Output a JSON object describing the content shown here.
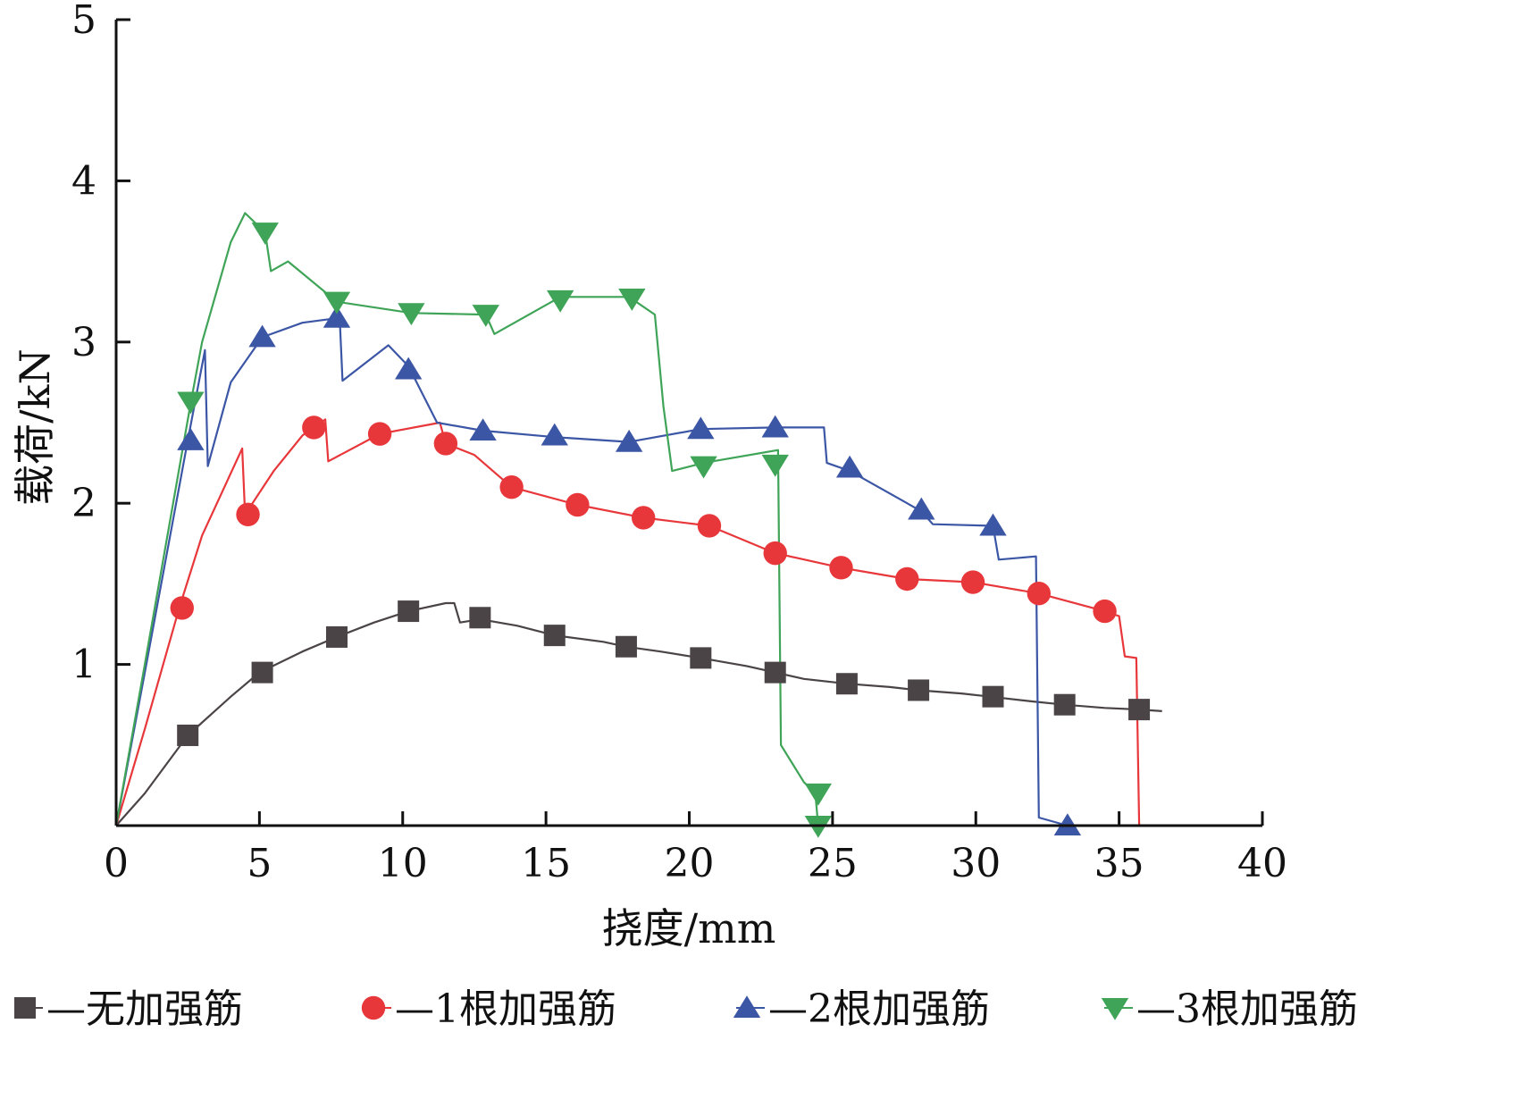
{
  "chart_data": {
    "type": "line",
    "title": "",
    "xlabel": "挠度/mm",
    "ylabel": "载荷/kN",
    "xlim": [
      0,
      40
    ],
    "ylim": [
      0,
      5
    ],
    "xticks": [
      0,
      5,
      10,
      15,
      20,
      25,
      30,
      35,
      40
    ],
    "yticks": [
      1,
      2,
      3,
      4,
      5
    ],
    "x_tick_labels": [
      "0",
      "5",
      "10",
      "15",
      "20",
      "25",
      "30",
      "35",
      "40"
    ],
    "y_tick_labels": [
      "1",
      "2",
      "3",
      "4",
      "5"
    ],
    "grid": false,
    "legend_position": "bottom",
    "series": [
      {
        "name": "无加强筋",
        "legend_label": "—无加强筋",
        "color": "#4a4446",
        "marker": "square",
        "points": [
          [
            0,
            0
          ],
          [
            1,
            0.2
          ],
          [
            2.5,
            0.56
          ],
          [
            4,
            0.8
          ],
          [
            5,
            0.95
          ],
          [
            6.5,
            1.08
          ],
          [
            7.7,
            1.17
          ],
          [
            9,
            1.26
          ],
          [
            10.2,
            1.33
          ],
          [
            11.5,
            1.38
          ],
          [
            11.8,
            1.38
          ],
          [
            12,
            1.26
          ],
          [
            12.7,
            1.28
          ],
          [
            14,
            1.24
          ],
          [
            15.3,
            1.18
          ],
          [
            17,
            1.14
          ],
          [
            17.8,
            1.11
          ],
          [
            19,
            1.08
          ],
          [
            20.4,
            1.04
          ],
          [
            22,
            0.99
          ],
          [
            23,
            0.95
          ],
          [
            24,
            0.91
          ],
          [
            25.5,
            0.88
          ],
          [
            27,
            0.86
          ],
          [
            28,
            0.84
          ],
          [
            29.5,
            0.82
          ],
          [
            30.5,
            0.8
          ],
          [
            32,
            0.77
          ],
          [
            33.1,
            0.75
          ],
          [
            34.5,
            0.73
          ],
          [
            35.7,
            0.72
          ],
          [
            36.5,
            0.71
          ]
        ],
        "markers": [
          [
            2.5,
            0.56
          ],
          [
            5.1,
            0.95
          ],
          [
            7.7,
            1.17
          ],
          [
            10.2,
            1.33
          ],
          [
            12.7,
            1.29
          ],
          [
            15.3,
            1.18
          ],
          [
            17.8,
            1.11
          ],
          [
            20.4,
            1.04
          ],
          [
            23,
            0.95
          ],
          [
            25.5,
            0.88
          ],
          [
            28,
            0.84
          ],
          [
            30.6,
            0.8
          ],
          [
            33.1,
            0.75
          ],
          [
            35.7,
            0.72
          ]
        ]
      },
      {
        "name": "1根加强筋",
        "legend_label": "—1根加强筋",
        "color": "#e8373a",
        "marker": "circle",
        "points": [
          [
            0,
            0
          ],
          [
            1,
            0.6
          ],
          [
            2.2,
            1.35
          ],
          [
            3,
            1.8
          ],
          [
            4.4,
            2.34
          ],
          [
            4.5,
            1.93
          ],
          [
            5.5,
            2.2
          ],
          [
            6.5,
            2.42
          ],
          [
            7.3,
            2.52
          ],
          [
            7.4,
            2.26
          ],
          [
            9.2,
            2.43
          ],
          [
            11.3,
            2.5
          ],
          [
            11.5,
            2.37
          ],
          [
            12.5,
            2.3
          ],
          [
            13.8,
            2.1
          ],
          [
            16.1,
            1.99
          ],
          [
            18.4,
            1.91
          ],
          [
            20.7,
            1.86
          ],
          [
            23,
            1.69
          ],
          [
            25.3,
            1.6
          ],
          [
            27.6,
            1.53
          ],
          [
            29.9,
            1.51
          ],
          [
            32.2,
            1.44
          ],
          [
            34.3,
            1.34
          ],
          [
            35,
            1.3
          ],
          [
            35.2,
            1.05
          ],
          [
            35.6,
            1.04
          ],
          [
            35.7,
            0
          ]
        ],
        "markers": [
          [
            2.3,
            1.35
          ],
          [
            4.6,
            1.93
          ],
          [
            6.9,
            2.47
          ],
          [
            9.2,
            2.43
          ],
          [
            11.5,
            2.37
          ],
          [
            13.8,
            2.1
          ],
          [
            16.1,
            1.99
          ],
          [
            18.4,
            1.91
          ],
          [
            20.7,
            1.86
          ],
          [
            23,
            1.69
          ],
          [
            25.3,
            1.6
          ],
          [
            27.6,
            1.53
          ],
          [
            29.9,
            1.51
          ],
          [
            32.2,
            1.44
          ],
          [
            34.5,
            1.33
          ]
        ]
      },
      {
        "name": "2根加强筋",
        "legend_label": "—2根加强筋",
        "color": "#3c56a6",
        "marker": "triangle-up",
        "points": [
          [
            0,
            0
          ],
          [
            1,
            0.95
          ],
          [
            2.5,
            2.39
          ],
          [
            3.1,
            2.95
          ],
          [
            3.2,
            2.23
          ],
          [
            4,
            2.75
          ],
          [
            5.1,
            3.03
          ],
          [
            6.5,
            3.12
          ],
          [
            7.8,
            3.15
          ],
          [
            7.9,
            2.76
          ],
          [
            9.5,
            2.98
          ],
          [
            10.2,
            2.85
          ],
          [
            11.2,
            2.5
          ],
          [
            12.8,
            2.45
          ],
          [
            15.3,
            2.41
          ],
          [
            17.9,
            2.38
          ],
          [
            20.4,
            2.46
          ],
          [
            23,
            2.47
          ],
          [
            24.7,
            2.47
          ],
          [
            24.8,
            2.25
          ],
          [
            25.6,
            2.2
          ],
          [
            28.1,
            1.95
          ],
          [
            28.5,
            1.87
          ],
          [
            30.6,
            1.86
          ],
          [
            30.8,
            1.65
          ],
          [
            32.1,
            1.67
          ],
          [
            32.2,
            0.05
          ],
          [
            33.2,
            0
          ]
        ],
        "markers": [
          [
            2.6,
            2.39
          ],
          [
            5.1,
            3.03
          ],
          [
            7.7,
            3.15
          ],
          [
            10.2,
            2.83
          ],
          [
            12.8,
            2.45
          ],
          [
            15.3,
            2.42
          ],
          [
            17.9,
            2.38
          ],
          [
            20.4,
            2.46
          ],
          [
            23,
            2.47
          ],
          [
            25.6,
            2.22
          ],
          [
            28.1,
            1.96
          ],
          [
            30.6,
            1.86
          ],
          [
            33.2,
            0
          ]
        ]
      },
      {
        "name": "3根加强筋",
        "legend_label": "—3根加强筋",
        "color": "#3fa457",
        "marker": "triangle-down",
        "points": [
          [
            0,
            0
          ],
          [
            1,
            1.0
          ],
          [
            2.6,
            2.62
          ],
          [
            3,
            3.0
          ],
          [
            4,
            3.62
          ],
          [
            4.5,
            3.8
          ],
          [
            5.2,
            3.68
          ],
          [
            5.4,
            3.44
          ],
          [
            6,
            3.5
          ],
          [
            7.7,
            3.25
          ],
          [
            10.3,
            3.18
          ],
          [
            12.9,
            3.17
          ],
          [
            13.2,
            3.05
          ],
          [
            15.5,
            3.28
          ],
          [
            17.9,
            3.28
          ],
          [
            18.8,
            3.17
          ],
          [
            19.1,
            2.6
          ],
          [
            19.4,
            2.2
          ],
          [
            20.5,
            2.25
          ],
          [
            23.1,
            2.33
          ],
          [
            23.2,
            0.5
          ],
          [
            24,
            0.27
          ],
          [
            24.4,
            0.2
          ],
          [
            24.5,
            0
          ]
        ],
        "markers": [
          [
            2.6,
            2.63
          ],
          [
            5.2,
            3.68
          ],
          [
            7.7,
            3.25
          ],
          [
            10.3,
            3.18
          ],
          [
            12.9,
            3.17
          ],
          [
            15.5,
            3.26
          ],
          [
            18,
            3.27
          ],
          [
            20.5,
            2.23
          ],
          [
            23,
            2.24
          ],
          [
            24.5,
            0.2
          ],
          [
            24.5,
            0
          ]
        ]
      }
    ]
  }
}
